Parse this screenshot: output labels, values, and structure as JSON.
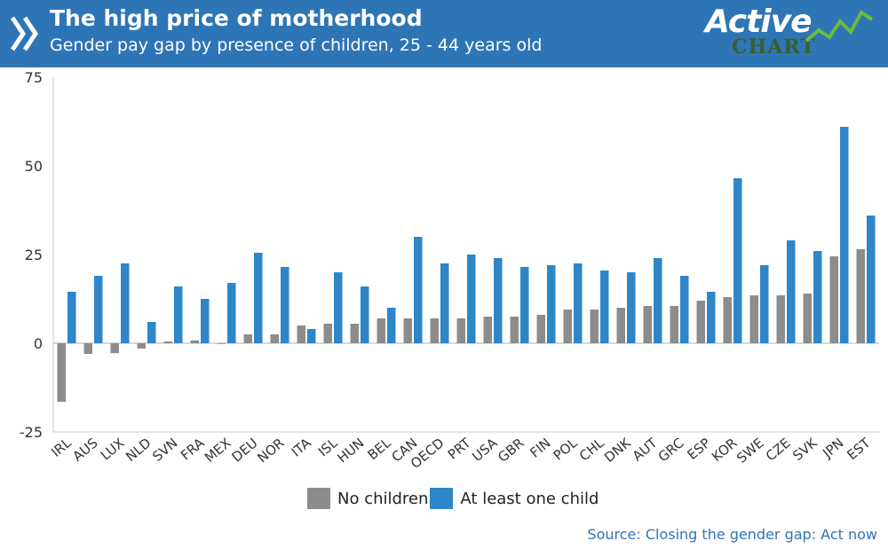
{
  "header": {
    "title": "The high price of motherhood",
    "subtitle": "Gender pay gap by presence of children, 25 - 44 years old",
    "logo_active": "Active",
    "logo_chart": "CHART",
    "bg_color": "#2e75b6"
  },
  "chart_data": {
    "type": "bar",
    "title": "The high price of motherhood",
    "subtitle": "Gender pay gap by presence of children, 25 - 44 years old",
    "xlabel": "",
    "ylabel": "",
    "ylim": [
      -25,
      75
    ],
    "yticks": [
      -25,
      0,
      25,
      50,
      75
    ],
    "grid": false,
    "legend_position": "bottom",
    "categories": [
      "IRL",
      "AUS",
      "LUX",
      "NLD",
      "SVN",
      "FRA",
      "MEX",
      "DEU",
      "NOR",
      "ITA",
      "ISL",
      "HUN",
      "BEL",
      "CAN",
      "OECD",
      "PRT",
      "USA",
      "GBR",
      "FIN",
      "POL",
      "CHL",
      "DNK",
      "AUT",
      "GRC",
      "ESP",
      "KOR",
      "SWE",
      "CZE",
      "SVK",
      "JPN",
      "EST"
    ],
    "series": [
      {
        "name": "No children",
        "color": "#8c8c8c",
        "values": [
          -16.5,
          -3,
          -2.8,
          -1.5,
          0.5,
          0.8,
          0,
          2.5,
          2.5,
          5,
          5.5,
          5.5,
          7,
          7,
          7,
          7,
          7.5,
          7.5,
          8,
          9.5,
          9.5,
          10,
          10.5,
          10.5,
          12,
          13,
          13.5,
          13.5,
          14,
          24.5,
          26.5
        ]
      },
      {
        "name": "At least one child",
        "color": "#2e86c8",
        "values": [
          14.5,
          19,
          22.5,
          6,
          16,
          12.5,
          17,
          25.5,
          21.5,
          4,
          20,
          16,
          10,
          30,
          22.5,
          25,
          24,
          21.5,
          22,
          22.5,
          20.5,
          20,
          24,
          19,
          14.5,
          46.5,
          22,
          29,
          26,
          61,
          36
        ]
      }
    ]
  },
  "source": "Source: Closing the gender gap: Act now"
}
